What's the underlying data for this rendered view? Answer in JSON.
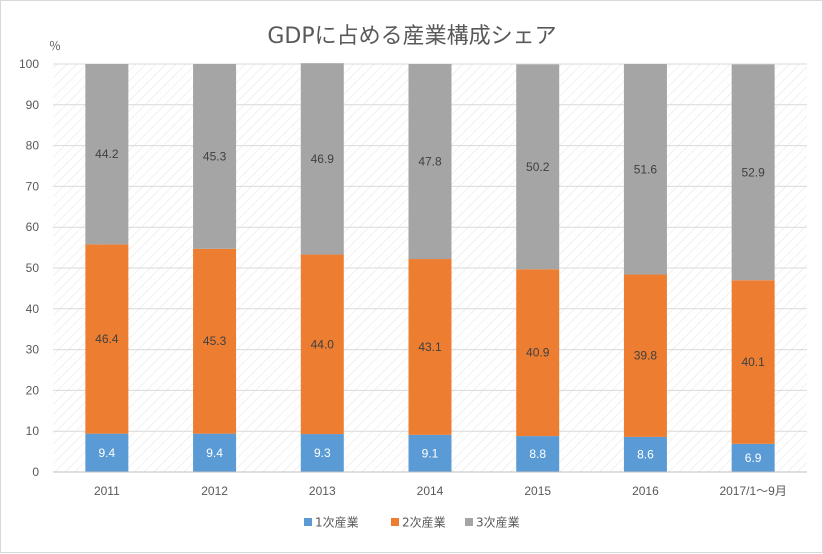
{
  "chart_data": {
    "type": "bar",
    "stacked": true,
    "title": "GDPに占める産業構成シェア",
    "ylabel": "％",
    "xlabel": "",
    "ylim": [
      0,
      100
    ],
    "yticks": [
      0,
      10,
      20,
      30,
      40,
      50,
      60,
      70,
      80,
      90,
      100
    ],
    "grid": true,
    "legend_position": "bottom",
    "categories": [
      "2011",
      "2012",
      "2013",
      "2014",
      "2015",
      "2016",
      "2017/1～9月"
    ],
    "series": [
      {
        "name": "1次産業",
        "color": "#5b9bd5",
        "label_color": "#ffffff",
        "values": [
          9.4,
          9.4,
          9.3,
          9.1,
          8.8,
          8.6,
          6.9
        ]
      },
      {
        "name": "2次産業",
        "color": "#ed7d31",
        "label_color": "#404040",
        "values": [
          46.4,
          45.3,
          44.0,
          43.1,
          40.9,
          39.8,
          40.1
        ]
      },
      {
        "name": "3次産業",
        "color": "#a5a5a5",
        "label_color": "#404040",
        "values": [
          44.2,
          45.3,
          46.9,
          47.8,
          50.2,
          51.6,
          52.9
        ]
      }
    ]
  }
}
